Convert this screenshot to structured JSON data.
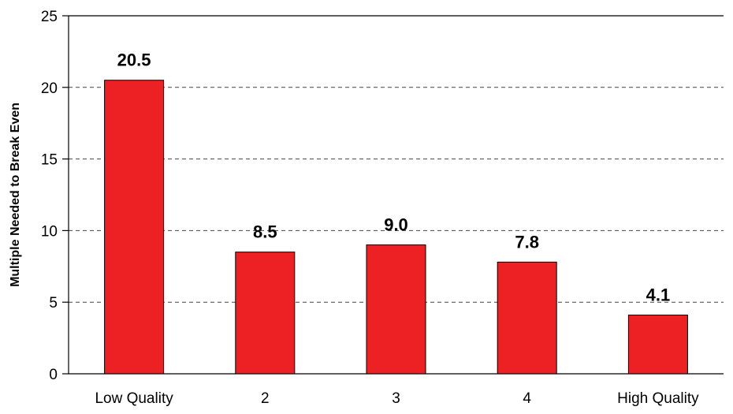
{
  "chart_data": {
    "type": "bar",
    "categories": [
      "Low Quality",
      "2",
      "3",
      "4",
      "High Quality"
    ],
    "values": [
      20.5,
      8.5,
      9.0,
      7.8,
      4.1
    ],
    "value_labels": [
      "20.5",
      "8.5",
      "9.0",
      "7.8",
      "4.1"
    ],
    "title": "",
    "xlabel": "",
    "ylabel": "Multiple Needed to Break Even",
    "ylim": [
      0,
      25
    ],
    "yticks": [
      0,
      5,
      10,
      15,
      20,
      25
    ],
    "ytick_labels": [
      "0",
      "5",
      "10",
      "15",
      "20",
      "25"
    ],
    "grid": "horizontal dashed",
    "bar_color": "#ED2024",
    "legend": "none"
  }
}
